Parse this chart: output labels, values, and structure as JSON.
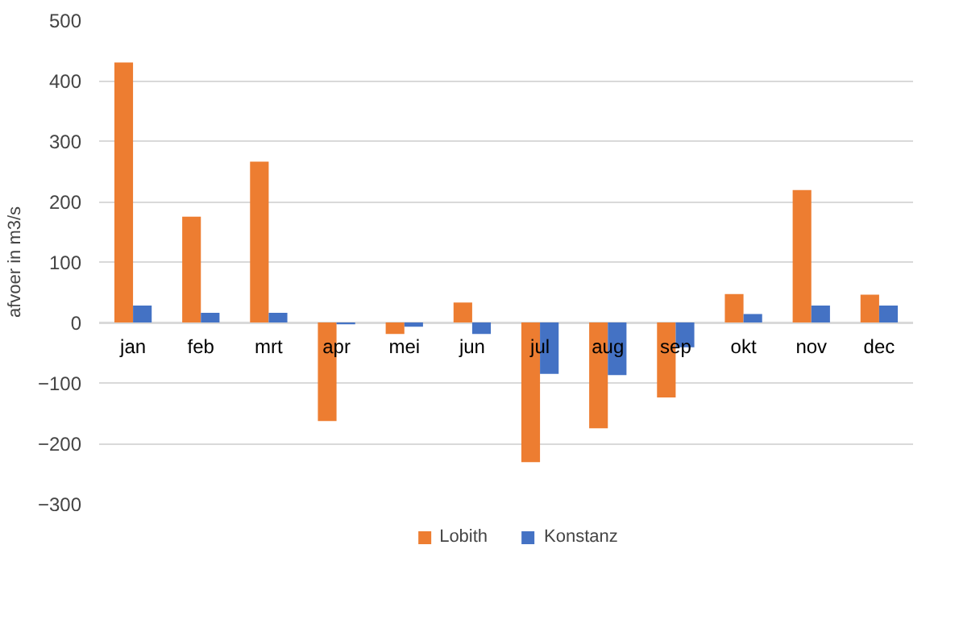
{
  "chart_data": {
    "type": "bar",
    "ylabel": "afvoer in m3/s",
    "categories": [
      "jan",
      "feb",
      "mrt",
      "apr",
      "mei",
      "jun",
      "jul",
      "aug",
      "sep",
      "okt",
      "nov",
      "dec"
    ],
    "series": [
      {
        "name": "Lobith",
        "color": "#ed7d31",
        "values": [
          430,
          175,
          266,
          -163,
          -19,
          33,
          -231,
          -175,
          -124,
          47,
          219,
          46
        ]
      },
      {
        "name": "Konstanz",
        "color": "#4472c4",
        "values": [
          28,
          16,
          16,
          -3,
          -7,
          -19,
          -85,
          -87,
          -41,
          14,
          28,
          28
        ]
      }
    ],
    "ylim": [
      -300,
      500
    ],
    "yticks": [
      -300,
      -200,
      -100,
      0,
      100,
      200,
      300,
      400,
      500
    ],
    "grid": "y",
    "legend": "bottom"
  }
}
